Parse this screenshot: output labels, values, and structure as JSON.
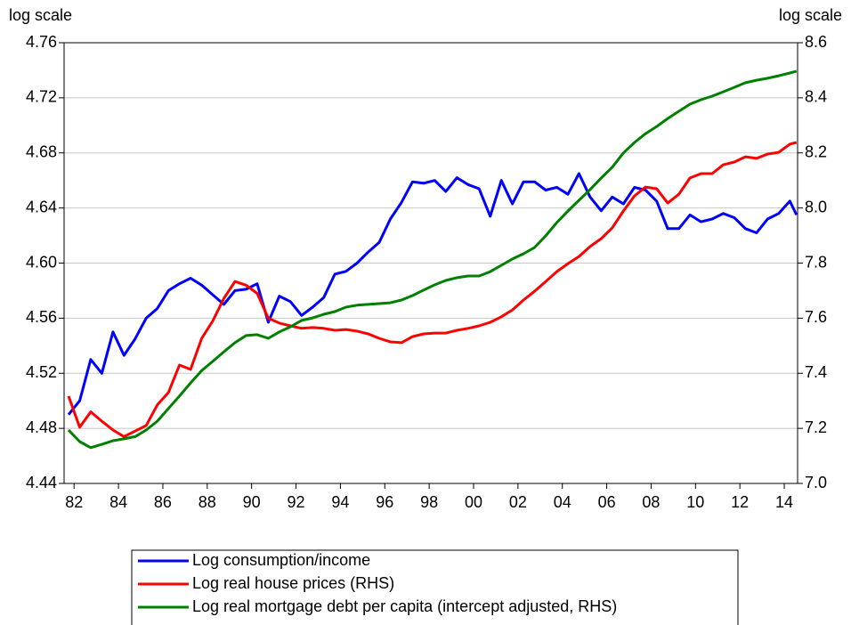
{
  "chart_data": {
    "type": "line",
    "ylabel": "log scale",
    "y2label": "log scale",
    "x": [
      1981.75,
      1982.25,
      1982.75,
      1983.25,
      1983.75,
      1984.25,
      1984.75,
      1985.25,
      1985.75,
      1986.25,
      1986.75,
      1987.25,
      1987.75,
      1988.25,
      1988.75,
      1989.25,
      1989.75,
      1990.25,
      1990.75,
      1991.25,
      1991.75,
      1992.25,
      1992.75,
      1993.25,
      1993.75,
      1994.25,
      1994.75,
      1995.25,
      1995.75,
      1996.25,
      1996.75,
      1997.25,
      1997.75,
      1998.25,
      1998.75,
      1999.25,
      1999.75,
      2000.25,
      2000.75,
      2001.25,
      2001.75,
      2002.25,
      2002.75,
      2003.25,
      2003.75,
      2004.25,
      2004.75,
      2005.25,
      2005.75,
      2006.25,
      2006.75,
      2007.25,
      2007.75,
      2008.25,
      2008.75,
      2009.25,
      2009.75,
      2010.25,
      2010.75,
      2011.25,
      2011.75,
      2012.25,
      2012.75,
      2013.25,
      2013.75,
      2014.25,
      2014.55
    ],
    "series": [
      {
        "name": "Log consumption/income",
        "color": "#0000ff",
        "values": [
          4.49,
          4.5,
          4.53,
          4.52,
          4.55,
          4.533,
          4.545,
          4.56,
          4.567,
          4.58,
          4.585,
          4.589,
          4.584,
          4.577,
          4.57,
          4.58,
          4.581,
          4.585,
          4.557,
          4.576,
          4.572,
          4.562,
          4.568,
          4.575,
          4.592,
          4.594,
          4.6,
          4.608,
          4.615,
          4.632,
          4.644,
          4.659,
          4.658,
          4.66,
          4.652,
          4.662,
          4.657,
          4.654,
          4.634,
          4.66,
          4.643,
          4.659,
          4.659,
          4.653,
          4.655,
          4.65,
          4.665,
          4.648,
          4.638,
          4.648,
          4.643,
          4.655,
          4.653,
          4.645,
          4.625,
          4.625,
          4.635,
          4.63,
          4.632,
          4.636,
          4.633,
          4.625,
          4.622,
          4.632,
          4.636,
          4.645,
          4.635
        ]
      },
      {
        "name": "Log real house prices (RHS)",
        "color": "#ff0000",
        "axis": "y2",
        "values": [
          7.317,
          7.204,
          7.26,
          7.226,
          7.194,
          7.17,
          7.19,
          7.21,
          7.285,
          7.33,
          7.43,
          7.414,
          7.527,
          7.59,
          7.672,
          7.733,
          7.72,
          7.69,
          7.6,
          7.582,
          7.572,
          7.563,
          7.566,
          7.563,
          7.556,
          7.559,
          7.553,
          7.543,
          7.527,
          7.514,
          7.511,
          7.533,
          7.543,
          7.546,
          7.546,
          7.556,
          7.563,
          7.572,
          7.585,
          7.605,
          7.63,
          7.666,
          7.698,
          7.733,
          7.769,
          7.798,
          7.824,
          7.86,
          7.889,
          7.928,
          7.989,
          8.044,
          8.076,
          8.07,
          8.018,
          8.05,
          8.109,
          8.125,
          8.125,
          8.157,
          8.167,
          8.186,
          8.18,
          8.196,
          8.202,
          8.232,
          8.238
        ]
      },
      {
        "name": "Log real mortgage debt per capita (intercept adjusted, RHS)",
        "color": "#008000",
        "axis": "y2",
        "values": [
          7.194,
          7.152,
          7.13,
          7.142,
          7.155,
          7.162,
          7.17,
          7.194,
          7.226,
          7.272,
          7.317,
          7.365,
          7.41,
          7.443,
          7.478,
          7.511,
          7.537,
          7.54,
          7.527,
          7.55,
          7.569,
          7.592,
          7.601,
          7.614,
          7.624,
          7.64,
          7.647,
          7.65,
          7.653,
          7.656,
          7.666,
          7.682,
          7.702,
          7.721,
          7.737,
          7.747,
          7.753,
          7.753,
          7.769,
          7.792,
          7.815,
          7.834,
          7.857,
          7.899,
          7.947,
          7.989,
          8.028,
          8.067,
          8.109,
          8.148,
          8.2,
          8.238,
          8.27,
          8.296,
          8.325,
          8.351,
          8.377,
          8.393,
          8.406,
          8.422,
          8.438,
          8.455,
          8.464,
          8.471,
          8.48,
          8.49,
          8.497
        ]
      }
    ],
    "xlim": [
      1981.55,
      2014.6
    ],
    "xticks": [
      {
        "value": 1982,
        "label": "82"
      },
      {
        "value": 1984,
        "label": "84"
      },
      {
        "value": 1986,
        "label": "86"
      },
      {
        "value": 1988,
        "label": "88"
      },
      {
        "value": 1990,
        "label": "90"
      },
      {
        "value": 1992,
        "label": "92"
      },
      {
        "value": 1994,
        "label": "94"
      },
      {
        "value": 1996,
        "label": "96"
      },
      {
        "value": 1998,
        "label": "98"
      },
      {
        "value": 2000,
        "label": "00"
      },
      {
        "value": 2002,
        "label": "02"
      },
      {
        "value": 2004,
        "label": "04"
      },
      {
        "value": 2006,
        "label": "06"
      },
      {
        "value": 2008,
        "label": "08"
      },
      {
        "value": 2010,
        "label": "10"
      },
      {
        "value": 2012,
        "label": "12"
      },
      {
        "value": 2014,
        "label": "14"
      }
    ],
    "ylim": [
      4.44,
      4.76
    ],
    "yticks": [
      {
        "value": 4.44,
        "label": "4.44"
      },
      {
        "value": 4.48,
        "label": "4.48"
      },
      {
        "value": 4.52,
        "label": "4.52"
      },
      {
        "value": 4.56,
        "label": "4.56"
      },
      {
        "value": 4.6,
        "label": "4.60"
      },
      {
        "value": 4.64,
        "label": "4.64"
      },
      {
        "value": 4.68,
        "label": "4.68"
      },
      {
        "value": 4.72,
        "label": "4.72"
      },
      {
        "value": 4.76,
        "label": "4.76"
      }
    ],
    "y2lim": [
      7.0,
      8.6
    ],
    "y2ticks": [
      {
        "value": 7.0,
        "label": "7.0"
      },
      {
        "value": 7.2,
        "label": "7.2"
      },
      {
        "value": 7.4,
        "label": "7.4"
      },
      {
        "value": 7.6,
        "label": "7.6"
      },
      {
        "value": 7.8,
        "label": "7.8"
      },
      {
        "value": 8.0,
        "label": "8.0"
      },
      {
        "value": 8.2,
        "label": "8.2"
      },
      {
        "value": 8.4,
        "label": "8.4"
      },
      {
        "value": 8.6,
        "label": "8.6"
      }
    ],
    "grid": true
  }
}
